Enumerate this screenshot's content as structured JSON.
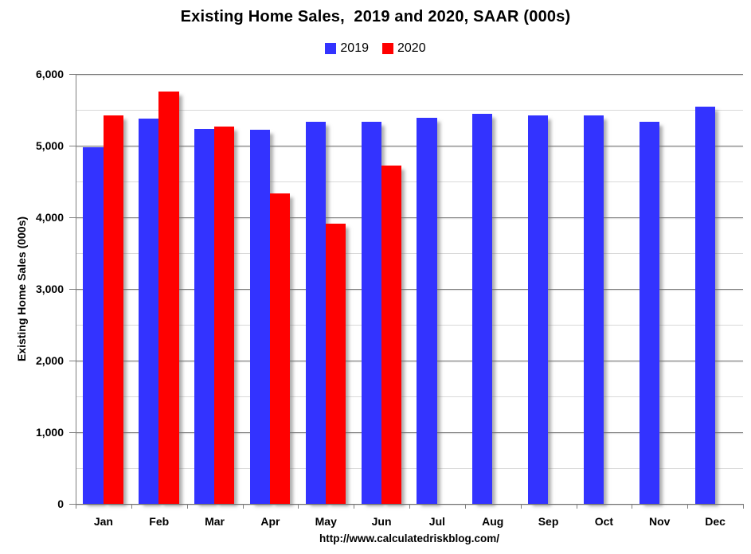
{
  "title": "Existing Home Sales,  2019 and 2020, SAAR (000s)",
  "footer_url": "http://www.calculatedriskblog.com/",
  "chart_data": {
    "type": "bar",
    "title": "Existing Home Sales,  2019 and 2020, SAAR (000s)",
    "xlabel": "",
    "ylabel": "Existing Home Sales (000s)",
    "categories": [
      "Jan",
      "Feb",
      "Mar",
      "Apr",
      "May",
      "Jun",
      "Jul",
      "Aug",
      "Sep",
      "Oct",
      "Nov",
      "Dec"
    ],
    "series": [
      {
        "name": "2019",
        "color": "#3333FF",
        "values": [
          4980,
          5380,
          5230,
          5220,
          5330,
          5330,
          5390,
          5440,
          5420,
          5420,
          5330,
          5540
        ]
      },
      {
        "name": "2020",
        "color": "#FF0000",
        "values": [
          5420,
          5760,
          5270,
          4330,
          3910,
          4720,
          null,
          null,
          null,
          null,
          null,
          null
        ]
      }
    ],
    "ylim": [
      0,
      6000
    ],
    "ytick_interval": 1000,
    "minor_gridline_interval": 500,
    "ytick_labels": [
      "0",
      "1,000",
      "2,000",
      "3,000",
      "4,000",
      "5,000",
      "6,000"
    ],
    "grid": true,
    "legend_position": "top-center"
  },
  "colors": {
    "series_2019": "#3333FF",
    "series_2020": "#FF0000",
    "major_gridline": "#7f7f7f",
    "minor_gridline": "#d9d9d9",
    "axis": "#6e6e6e",
    "text": "#000000",
    "background": "#FFFFFF"
  }
}
